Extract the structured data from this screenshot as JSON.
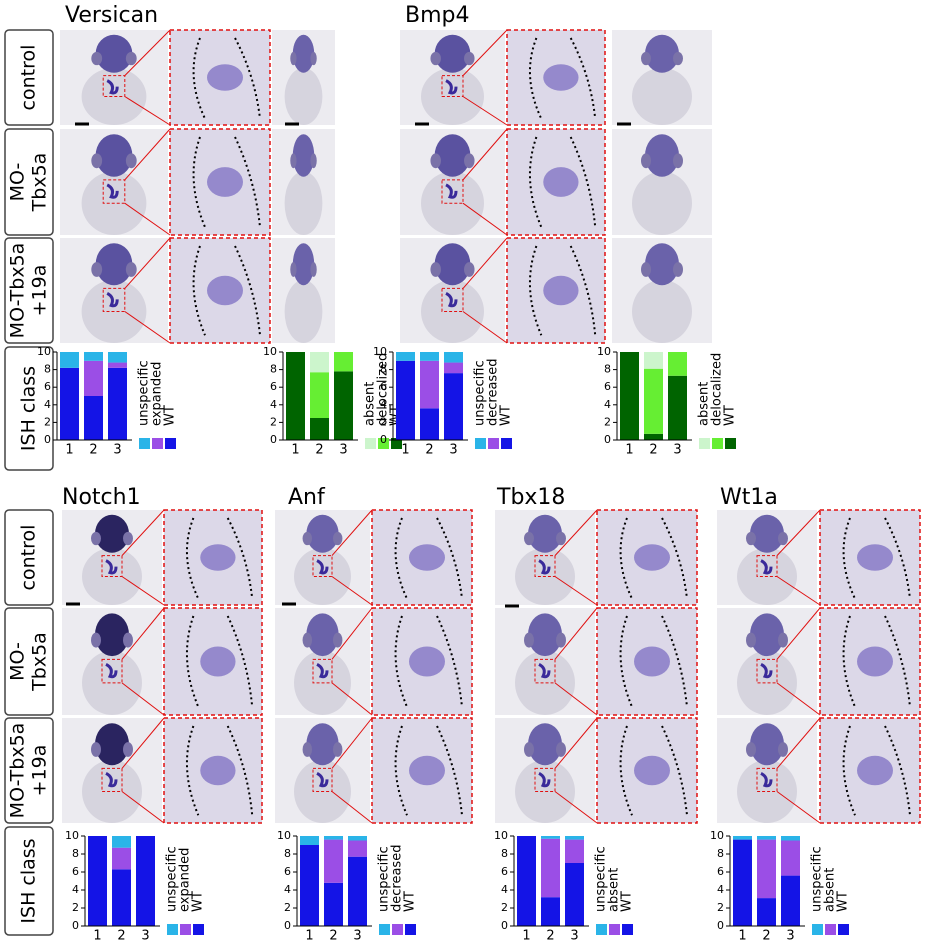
{
  "figure": {
    "top_titles": [
      "Versican",
      "Bmp4"
    ],
    "bottom_titles": [
      "Notch1",
      "Anf",
      "Tbx18",
      "Wt1a"
    ],
    "row_labels": [
      [
        "control"
      ],
      [
        "MO-",
        "Tbx5a"
      ],
      [
        "MO-Tbx5a",
        "+19a"
      ],
      [
        "ISH class"
      ]
    ]
  },
  "chart_data": [
    {
      "type": "bar",
      "stacked": true,
      "categories": [
        "1",
        "2",
        "3"
      ],
      "ylim": [
        0,
        10
      ],
      "yticks": [
        0,
        2,
        4,
        6,
        8,
        10
      ],
      "series": [
        {
          "name": "WT",
          "color": "#1414e6",
          "values": [
            8.2,
            5,
            8.2
          ]
        },
        {
          "name": "expanded",
          "color": "#9b4ee6",
          "values": [
            0,
            4,
            0.6
          ]
        },
        {
          "name": "unspecific",
          "color": "#2ab4e8",
          "values": [
            1.8,
            1,
            1.2
          ]
        }
      ]
    },
    {
      "type": "bar",
      "stacked": true,
      "categories": [
        "1",
        "2",
        "3"
      ],
      "ylim": [
        0,
        10
      ],
      "yticks": [
        0,
        2,
        4,
        6,
        8,
        10
      ],
      "series": [
        {
          "name": "WT",
          "color": "#006400",
          "values": [
            10,
            2.5,
            7.8
          ]
        },
        {
          "name": "delocalized",
          "color": "#66ee33",
          "values": [
            0,
            5.2,
            2.2
          ]
        },
        {
          "name": "absent",
          "color": "#ccf5cc",
          "values": [
            0,
            2.3,
            0
          ]
        }
      ]
    },
    {
      "type": "bar",
      "stacked": true,
      "categories": [
        "1",
        "2",
        "3"
      ],
      "ylim": [
        0,
        10
      ],
      "yticks": [
        0,
        2,
        4,
        6,
        8,
        10
      ],
      "series": [
        {
          "name": "WT",
          "color": "#1414e6",
          "values": [
            9,
            3.6,
            7.6
          ]
        },
        {
          "name": "decreased",
          "color": "#9b4ee6",
          "values": [
            0,
            5.4,
            1.2
          ]
        },
        {
          "name": "unspecific",
          "color": "#2ab4e8",
          "values": [
            1,
            1,
            1.2
          ]
        }
      ]
    },
    {
      "type": "bar",
      "stacked": true,
      "categories": [
        "1",
        "2",
        "3"
      ],
      "ylim": [
        0,
        10
      ],
      "yticks": [
        0,
        2,
        4,
        6,
        8,
        10
      ],
      "series": [
        {
          "name": "WT",
          "color": "#006400",
          "values": [
            10,
            0.7,
            7.3
          ]
        },
        {
          "name": "delocalized",
          "color": "#66ee33",
          "values": [
            0,
            7.4,
            2.7
          ]
        },
        {
          "name": "absent",
          "color": "#ccf5cc",
          "values": [
            0,
            1.9,
            0
          ]
        }
      ]
    },
    {
      "type": "bar",
      "stacked": true,
      "categories": [
        "1",
        "2",
        "3"
      ],
      "ylim": [
        0,
        10
      ],
      "yticks": [
        0,
        2,
        4,
        6,
        8,
        10
      ],
      "series": [
        {
          "name": "WT",
          "color": "#1414e6",
          "values": [
            10,
            6.3,
            10
          ]
        },
        {
          "name": "expanded",
          "color": "#9b4ee6",
          "values": [
            0,
            2.4,
            0
          ]
        },
        {
          "name": "unspecific",
          "color": "#2ab4e8",
          "values": [
            0,
            1.3,
            0
          ]
        }
      ]
    },
    {
      "type": "bar",
      "stacked": true,
      "categories": [
        "1",
        "2",
        "3"
      ],
      "ylim": [
        0,
        10
      ],
      "yticks": [
        0,
        2,
        4,
        6,
        8,
        10
      ],
      "series": [
        {
          "name": "WT",
          "color": "#1414e6",
          "values": [
            9,
            4.8,
            7.7
          ]
        },
        {
          "name": "decreased",
          "color": "#9b4ee6",
          "values": [
            0,
            4.8,
            1.8
          ]
        },
        {
          "name": "unspecific",
          "color": "#2ab4e8",
          "values": [
            1,
            0.4,
            0.5
          ]
        }
      ]
    },
    {
      "type": "bar",
      "stacked": true,
      "categories": [
        "1",
        "2",
        "3"
      ],
      "ylim": [
        0,
        10
      ],
      "yticks": [
        0,
        2,
        4,
        6,
        8,
        10
      ],
      "series": [
        {
          "name": "WT",
          "color": "#1414e6",
          "values": [
            10,
            3.2,
            7
          ]
        },
        {
          "name": "absent",
          "color": "#9b4ee6",
          "values": [
            0,
            6.5,
            2.6
          ]
        },
        {
          "name": "unspecific",
          "color": "#2ab4e8",
          "values": [
            0,
            0.3,
            0.4
          ]
        }
      ]
    },
    {
      "type": "bar",
      "stacked": true,
      "categories": [
        "1",
        "2",
        "3"
      ],
      "ylim": [
        0,
        10
      ],
      "yticks": [
        0,
        2,
        4,
        6,
        8,
        10
      ],
      "series": [
        {
          "name": "WT",
          "color": "#1414e6",
          "values": [
            9.6,
            3.1,
            5.6
          ]
        },
        {
          "name": "absent",
          "color": "#9b4ee6",
          "values": [
            0,
            6.5,
            3.9
          ]
        },
        {
          "name": "unspecific",
          "color": "#2ab4e8",
          "values": [
            0.4,
            0.4,
            0.5
          ]
        }
      ]
    }
  ]
}
